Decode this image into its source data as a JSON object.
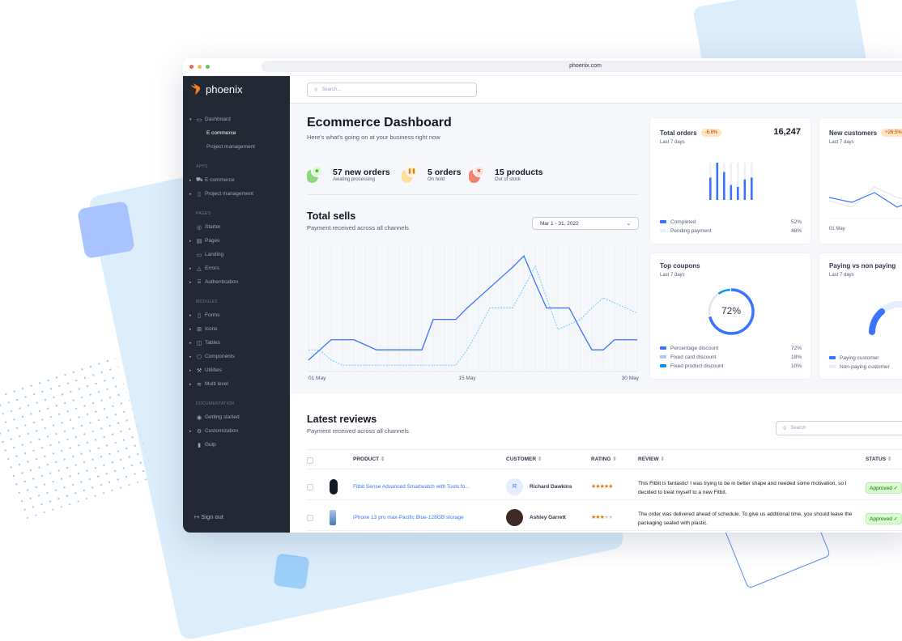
{
  "browser": {
    "url": "phoenix.com"
  },
  "brand": {
    "name": "phoenix",
    "accent": "#f97d2a"
  },
  "sidebar": {
    "items": [
      {
        "type": "item",
        "label": "Dashboard",
        "icon": "monitor-icon",
        "caret": "down",
        "active": false
      },
      {
        "type": "sub",
        "label": "E commerce",
        "active": true
      },
      {
        "type": "sub",
        "label": "Project management"
      },
      {
        "type": "label",
        "label": "APPS"
      },
      {
        "type": "item",
        "label": "E commerce",
        "icon": "cart-icon",
        "caret": "right"
      },
      {
        "type": "item",
        "label": "Project management",
        "icon": "clipboard-icon",
        "caret": "right"
      },
      {
        "type": "label",
        "label": "PAGES"
      },
      {
        "type": "item",
        "label": "Starter",
        "icon": "compass-icon"
      },
      {
        "type": "item",
        "label": "Pages",
        "icon": "layout-icon",
        "caret": "right"
      },
      {
        "type": "item",
        "label": "Landing",
        "icon": "monitor-icon"
      },
      {
        "type": "item",
        "label": "Errors",
        "icon": "alert-triangle-icon",
        "caret": "right"
      },
      {
        "type": "item",
        "label": "Authentication",
        "icon": "lock-icon",
        "caret": "right"
      },
      {
        "type": "label",
        "label": "MODULES"
      },
      {
        "type": "item",
        "label": "Forms",
        "icon": "file-text-icon",
        "caret": "right"
      },
      {
        "type": "item",
        "label": "Icons",
        "icon": "grid-icon",
        "caret": "right"
      },
      {
        "type": "item",
        "label": "Tables",
        "icon": "columns-icon",
        "caret": "right"
      },
      {
        "type": "item",
        "label": "Components",
        "icon": "package-icon",
        "caret": "right"
      },
      {
        "type": "item",
        "label": "Utilities",
        "icon": "tool-icon",
        "caret": "right"
      },
      {
        "type": "item",
        "label": "Multi level",
        "icon": "layers-icon",
        "caret": "right"
      },
      {
        "type": "label",
        "label": "DOCUMENTATION"
      },
      {
        "type": "item",
        "label": "Getting started",
        "icon": "life-buoy-icon"
      },
      {
        "type": "item",
        "label": "Customization",
        "icon": "settings-icon",
        "caret": "right"
      },
      {
        "type": "item",
        "label": "Gulp",
        "icon": "gulp-icon"
      }
    ],
    "signout": "Sign out"
  },
  "topbar": {
    "search_placeholder": "Search..."
  },
  "header": {
    "title": "Ecommerce Dashboard",
    "subtitle": "Here's what's going on at your business right now"
  },
  "stats": [
    {
      "title": "57 new orders",
      "sub": "Awating processing",
      "icon": "star-icon",
      "glyph": "★",
      "color": "#25b003",
      "bg": "#d9fbd0",
      "blob": "#90d67f"
    },
    {
      "title": "5 orders",
      "sub": "On hold",
      "icon": "pause-icon",
      "glyph": "❚❚",
      "color": "#e5780b",
      "bg": "#ffefca",
      "blob": "#ffde9d"
    },
    {
      "title": "15 products",
      "sub": "Out of stock",
      "icon": "x-icon",
      "glyph": "✕",
      "color": "#ec1f00",
      "bg": "#ffe0db",
      "blob": "#f48270"
    }
  ],
  "total_sells": {
    "title": "Total sells",
    "subtitle": "Payment received across all channels",
    "date_range": "Mar 1 - 31, 2022"
  },
  "chart_data": [
    {
      "type": "line",
      "x_tick_labels": [
        "01 May",
        "15 May",
        "30 May"
      ],
      "series": [
        {
          "style": "solid",
          "color": "#3874ff",
          "values": [
            9,
            17,
            25,
            25,
            25,
            21,
            17,
            17,
            17,
            17,
            17,
            41,
            41,
            41,
            50,
            58,
            66,
            74,
            82,
            91,
            70,
            50,
            50,
            50,
            33,
            17,
            17,
            25,
            25,
            25
          ]
        },
        {
          "style": "dashed",
          "color": "#60c6ff",
          "values": [
            17,
            17,
            9,
            5,
            5,
            5,
            5,
            5,
            5,
            5,
            5,
            5,
            5,
            5,
            17,
            33,
            50,
            50,
            50,
            66,
            83,
            58,
            33,
            37,
            41,
            50,
            58,
            54,
            50,
            46
          ]
        }
      ],
      "grid": "vertical"
    },
    {
      "type": "bar",
      "title": "Total orders",
      "values_percent_of_max": [
        60,
        100,
        75,
        40,
        35,
        55,
        60
      ]
    }
  ],
  "cards": {
    "total_orders": {
      "title": "Total orders",
      "badge": "-6.8%",
      "value": "16,247",
      "period": "Last 7 days",
      "legend": [
        {
          "label": "Completed",
          "value": "52%",
          "color": "#3874ff"
        },
        {
          "label": "Pending payment",
          "value": "48%",
          "color": "#e5edff"
        }
      ]
    },
    "new_customers": {
      "title": "New customers",
      "badge": "+26.5%",
      "period": "Last 7 days",
      "x_label": "01 May"
    },
    "top_coupons": {
      "title": "Top coupons",
      "period": "Last 7 days",
      "center": "72%",
      "legend": [
        {
          "label": "Percentage discount",
          "value": "72%",
          "color": "#3874ff",
          "pct": 72
        },
        {
          "label": "Fixed card discount",
          "value": "18%",
          "color": "#adc5ff",
          "pct": 18
        },
        {
          "label": "Fixed product discount",
          "value": "10%",
          "color": "#0097eb",
          "pct": 10
        }
      ]
    },
    "paying": {
      "title": "Paying vs non paying",
      "period": "Last 7 days",
      "legend": [
        {
          "label": "Paying customer",
          "color": "#3874ff"
        },
        {
          "label": "Non-paying customer",
          "color": "#e5edff"
        }
      ]
    }
  },
  "reviews": {
    "title": "Latest reviews",
    "subtitle": "Payment received across all channels",
    "search_placeholder": "Search",
    "columns": [
      "PRODUCT",
      "CUSTOMER",
      "RATING",
      "REVIEW",
      "STATUS"
    ],
    "rows": [
      {
        "product": "Fitbit Sense Advanced Smartwatch with Tools fo...",
        "customer": "Richard Dawkins",
        "initial": "R",
        "rating": 5,
        "review": "This Fitbit is fantastic! I was trying to be in better shape and needed some motivation, so I decided to treat myself to a new Fitbit.",
        "status": "Approved"
      },
      {
        "product": "iPhone 13 pro max-Pacific Blue-128GB storage",
        "customer": "Ashley Garrett",
        "rating": 3,
        "review": "The order was delivered ahead of schedule. To give us additional time, you should leave the packaging sealed with plastic.",
        "status": "Approved"
      }
    ]
  }
}
